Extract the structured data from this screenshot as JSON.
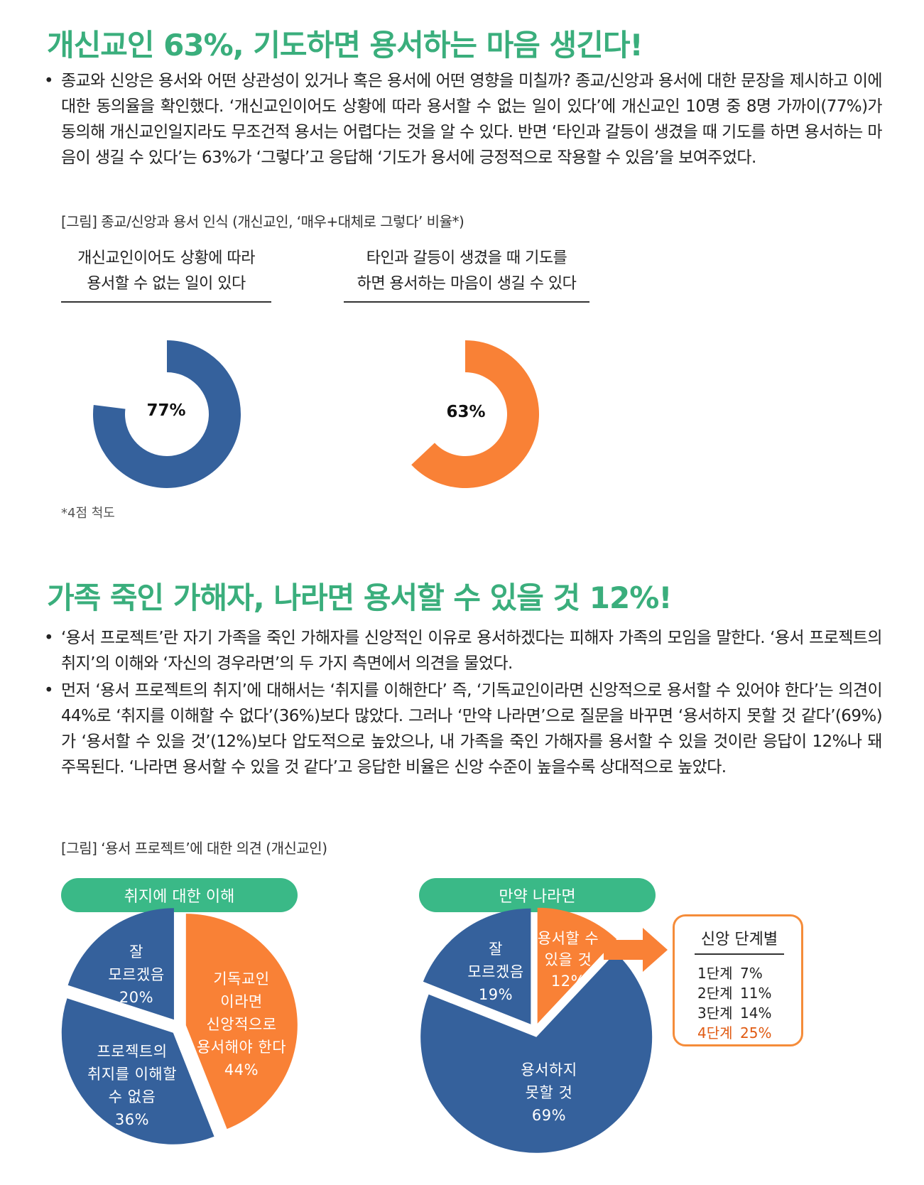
{
  "section1": {
    "heading": "개신교인 63%, 기도하면 용서하는 마음 생긴다!",
    "bullets": [
      "종교와 신앙은 용서와 어떤 상관성이 있거나 혹은 용서에 어떤 영향을 미칠까? 종교/신앙과 용서에 대한 문장을 제시하고 이에 대한 동의율을 확인했다. ‘개신교인이어도 상황에 따라 용서할 수 없는 일이 있다’에 개신교인 10명 중 8명 가까이(77%)가 동의해 개신교인일지라도 무조건적 용서는 어렵다는 것을 알 수 있다. 반면 ‘타인과 갈등이 생겼을 때 기도를 하면 용서하는 마음이 생길 수 있다’는 63%가 ‘그렇다’고 응답해 ‘기도가 용서에 긍정적으로 작용할 수 있음’을 보여주었다."
    ],
    "figure_caption": "[그림] 종교/신앙과 용서 인식 (개신교인, ‘매우+대체로 그렇다’ 비율*)",
    "note": "*4점 척도"
  },
  "section2": {
    "heading": "가족 죽인 가해자, 나라면 용서할 수 있을 것 12%!",
    "bullets": [
      "‘용서 프로젝트’란 자기 가족을 죽인 가해자를 신앙적인 이유로 용서하겠다는 피해자 가족의 모임을 말한다. ‘용서 프로젝트의 취지’의 이해와 ‘자신의 경우라면’의 두 가지 측면에서 의견을 물었다.",
      "먼저 ‘용서 프로젝트의 취지’에 대해서는 ‘취지를 이해한다’ 즉, ‘기독교인이라면 신앙적으로 용서할 수 있어야 한다’는 의견이 44%로 ‘취지를 이해할 수 없다’(36%)보다 많았다. 그러나 ‘만약 나라면’으로 질문을 바꾸면 ‘용서하지 못할 것 같다’(69%)가 ‘용서할 수 있을 것’(12%)보다 압도적으로 높았으나, 내 가족을 죽인 가해자를 용서할 수 있을 것이란 응답이 12%나 돼 주목된다. ‘나라면 용서할 수 있을 것 같다’고 응답한 비율은 신앙 수준이 높을수록 상대적으로 높았다."
    ],
    "figure_caption": "[그림] ‘용서 프로젝트’에 대한 의견 (개신교인)"
  },
  "colors": {
    "green": "#3aae7c",
    "blue": "#35619c",
    "orange": "#f98136"
  },
  "chart_data": [
    {
      "type": "pie",
      "variant": "donut",
      "title_lines": [
        "개신교인이어도 상황에 따라",
        "용서할 수 없는 일이 있다"
      ],
      "values": [
        77
      ],
      "label": "77%",
      "color": "#35619c"
    },
    {
      "type": "pie",
      "variant": "donut",
      "title_lines": [
        "타인과 갈등이 생겼을 때 기도를",
        "하면 용서하는 마음이 생길 수 있다"
      ],
      "values": [
        63
      ],
      "label": "63%",
      "color": "#f98136"
    },
    {
      "type": "pie",
      "title": "취지에 대한 이해",
      "slices": [
        {
          "lines": [
            "기독교인",
            "이라면",
            "신앙적으로",
            "용서해야 한다",
            "44%"
          ],
          "value": 44,
          "color": "#f98136"
        },
        {
          "lines": [
            "프로젝트의",
            "취지를 이해할",
            "수 없음",
            "36%"
          ],
          "value": 36,
          "color": "#35619c"
        },
        {
          "lines": [
            "잘",
            "모르겠음",
            "20%"
          ],
          "value": 20,
          "color": "#35619c"
        }
      ]
    },
    {
      "type": "pie",
      "title": "만약 나라면",
      "slices": [
        {
          "lines": [
            "용서할 수",
            "있을 것",
            "12%"
          ],
          "value": 12,
          "color": "#f98136"
        },
        {
          "lines": [
            "용서하지",
            "못할 것",
            "69%"
          ],
          "value": 69,
          "color": "#35619c"
        },
        {
          "lines": [
            "잘",
            "모르겠음",
            "19%"
          ],
          "value": 19,
          "color": "#35619c"
        }
      ]
    },
    {
      "type": "table",
      "title": "신앙 단계별",
      "rows": [
        {
          "level": "1단계",
          "value": "7%",
          "highlight": false
        },
        {
          "level": "2단계",
          "value": "11%",
          "highlight": false
        },
        {
          "level": "3단계",
          "value": "14%",
          "highlight": false
        },
        {
          "level": "4단계",
          "value": "25%",
          "highlight": true
        }
      ]
    }
  ]
}
